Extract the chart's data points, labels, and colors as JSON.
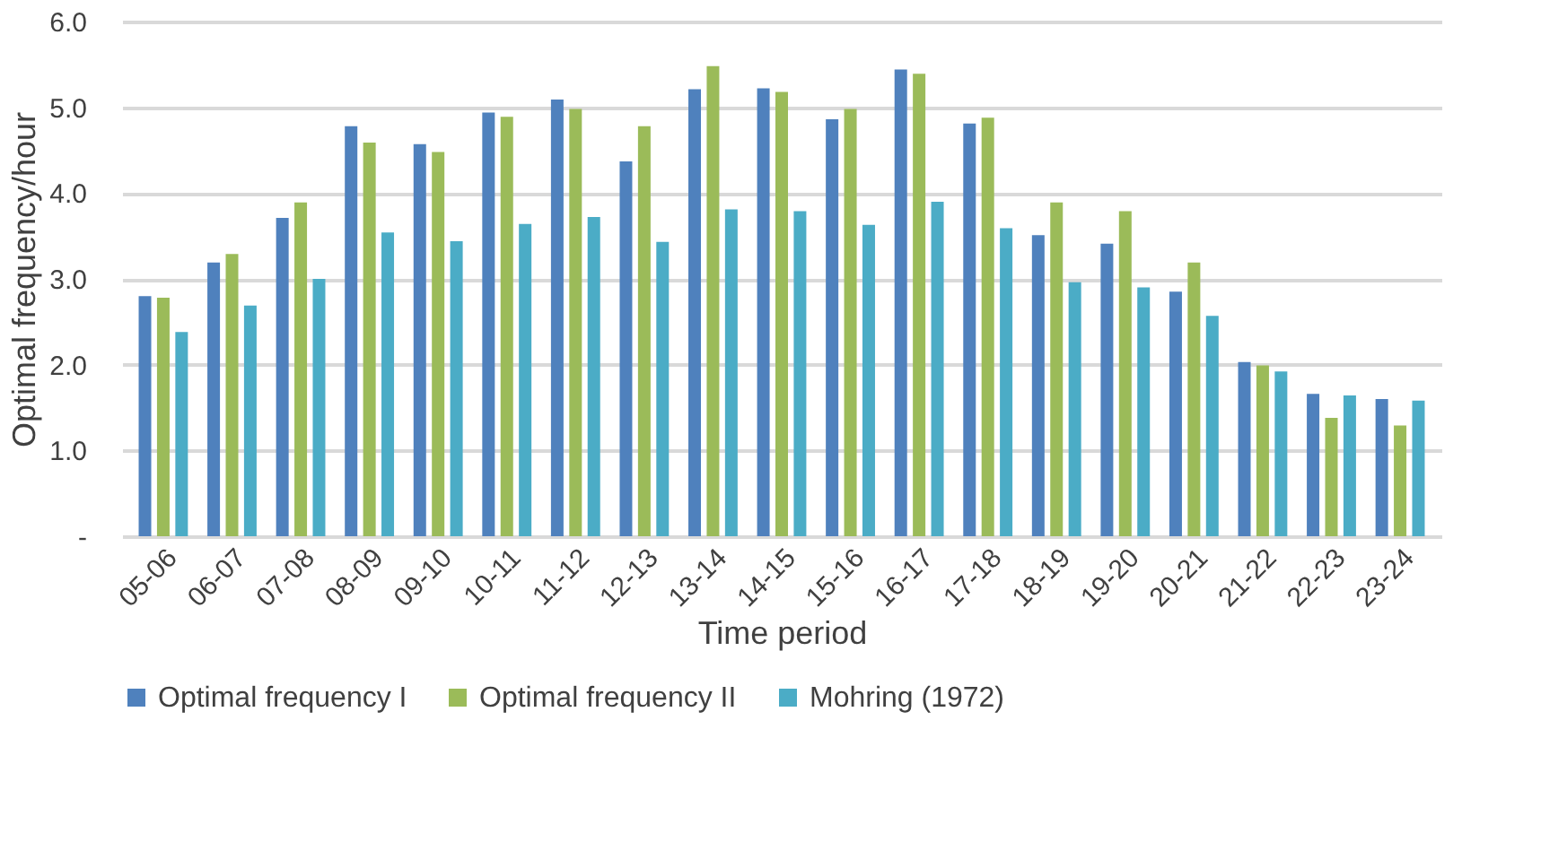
{
  "chart_data": {
    "type": "bar",
    "xlabel": "Time period",
    "ylabel": "Optimal frequency/hour",
    "categories": [
      "05-06",
      "06-07",
      "07-08",
      "08-09",
      "09-10",
      "10-11",
      "11-12",
      "12-13",
      "13-14",
      "14-15",
      "15-16",
      "16-17",
      "17-18",
      "18-19",
      "19-20",
      "20-21",
      "21-22",
      "22-23",
      "23-24"
    ],
    "series": [
      {
        "name": "Optimal frequency I",
        "color": "#4f81bd",
        "values": [
          2.8,
          3.19,
          3.71,
          4.78,
          4.57,
          4.94,
          5.09,
          4.37,
          5.21,
          5.22,
          4.86,
          5.44,
          4.81,
          3.51,
          3.41,
          2.85,
          2.03,
          1.66,
          1.6
        ]
      },
      {
        "name": "Optimal frequency II",
        "color": "#9bbb59",
        "values": [
          2.78,
          3.29,
          3.89,
          4.59,
          4.48,
          4.89,
          4.98,
          4.78,
          5.48,
          5.18,
          4.98,
          5.39,
          4.88,
          3.89,
          3.79,
          3.19,
          1.99,
          1.38,
          1.29
        ]
      },
      {
        "name": "Mohring (1972)",
        "color": "#4bacc6",
        "values": [
          2.38,
          2.69,
          3.0,
          3.54,
          3.44,
          3.64,
          3.72,
          3.43,
          3.81,
          3.79,
          3.63,
          3.9,
          3.59,
          2.96,
          2.9,
          2.57,
          1.92,
          1.64,
          1.58
        ]
      }
    ],
    "ylim": [
      0,
      6
    ],
    "yticks": [
      {
        "value": 0,
        "label": "-"
      },
      {
        "value": 1,
        "label": "1.0"
      },
      {
        "value": 2,
        "label": "2.0"
      },
      {
        "value": 3,
        "label": "3.0"
      },
      {
        "value": 4,
        "label": "4.0"
      },
      {
        "value": 5,
        "label": "5.0"
      },
      {
        "value": 6,
        "label": "6.0"
      }
    ],
    "grid": "y",
    "legend": "bottom"
  }
}
